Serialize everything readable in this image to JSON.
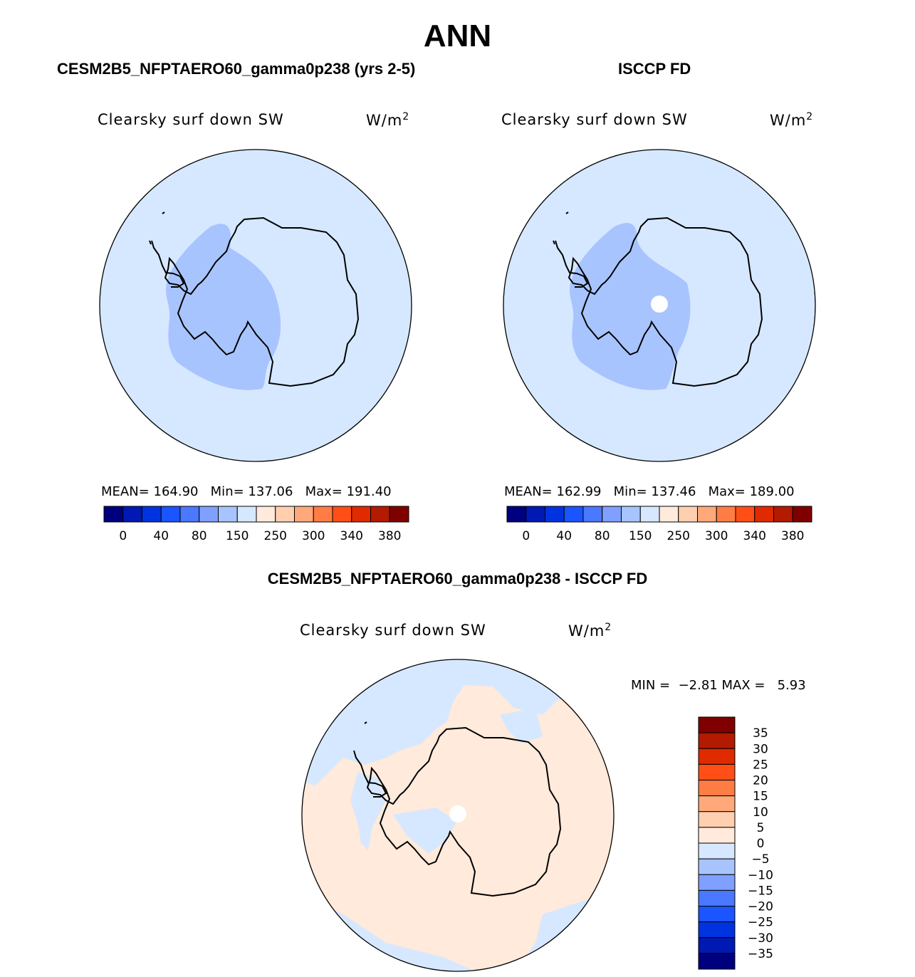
{
  "main_title": "ANN",
  "panels": [
    {
      "title": "CESM2B5_NFPTAERO60_gamma0p238 (yrs 2-5)",
      "variable": "Clearsky surf down SW",
      "unit": "W/m",
      "unit_sup": "2",
      "mean_label": "MEAN=",
      "mean": "164.90",
      "min_label": "Min=",
      "min": "137.06",
      "max_label": "Max=",
      "max": "191.40"
    },
    {
      "title": "ISCCP FD",
      "variable": "Clearsky surf down SW",
      "unit": "W/m",
      "unit_sup": "2",
      "mean_label": "MEAN=",
      "mean": "162.99",
      "min_label": "Min=",
      "min": "137.46",
      "max_label": "Max=",
      "max": "189.00"
    }
  ],
  "diff": {
    "title": "CESM2B5_NFPTAERO60_gamma0p238 - ISCCP FD",
    "variable": "Clearsky surf down SW",
    "unit": "W/m",
    "unit_sup": "2",
    "min_label": "MIN =",
    "min": "−2.81",
    "max_label": "MAX =",
    "max": "5.93"
  },
  "colorbar_horizontal": {
    "colors": [
      "#00007f",
      "#0019b2",
      "#0033e0",
      "#1a55ff",
      "#4a78ff",
      "#7fa0ff",
      "#a8c4ff",
      "#d6e8ff",
      "#ffeadb",
      "#ffcfb0",
      "#ffa97a",
      "#ff7d45",
      "#ff4f17",
      "#e02a00",
      "#b31a00",
      "#800000"
    ],
    "labels": [
      "0",
      "40",
      "80",
      "150",
      "250",
      "300",
      "340",
      "380"
    ]
  },
  "colorbar_vertical": {
    "colors": [
      "#800000",
      "#b31a00",
      "#e02a00",
      "#ff4f17",
      "#ff7d45",
      "#ffa97a",
      "#ffcfb0",
      "#ffeadb",
      "#d6e8ff",
      "#a8c4ff",
      "#7fa0ff",
      "#4a78ff",
      "#1a55ff",
      "#0033e0",
      "#0019b2",
      "#00007f"
    ],
    "labels": [
      "35",
      "30",
      "25",
      "20",
      "15",
      "10",
      "5",
      "0",
      "−5",
      "−10",
      "−15",
      "−20",
      "−25",
      "−30",
      "−35"
    ]
  },
  "colors": {
    "panel_fill": "#d6e8ff",
    "west_fill": "#a8c4ff",
    "diff_fill": "#ffeadb",
    "coast": "#000000"
  }
}
